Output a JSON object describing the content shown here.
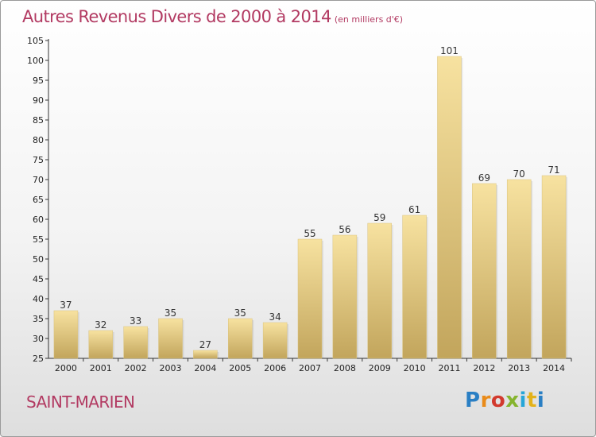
{
  "header": {
    "title": "Autres Revenus Divers de 2000 à 2014",
    "subtitle": "(en milliers d'€)"
  },
  "footer": {
    "place": "SAINT-MARIEN",
    "logo": [
      "P",
      "r",
      "o",
      "x",
      "i",
      "t",
      "i"
    ]
  },
  "colors": {
    "title": "#b23a62",
    "bar_light": "#f7e2a0",
    "bar_dark": "#c2a55c",
    "axis": "#333333"
  },
  "chart_data": {
    "type": "bar",
    "categories": [
      "2000",
      "2001",
      "2002",
      "2003",
      "2004",
      "2005",
      "2006",
      "2007",
      "2008",
      "2009",
      "2010",
      "2011",
      "2012",
      "2013",
      "2014"
    ],
    "values": [
      37,
      32,
      33,
      35,
      27,
      35,
      34,
      55,
      56,
      59,
      61,
      101,
      69,
      70,
      71
    ],
    "title": "Autres Revenus Divers de 2000 à 2014",
    "subtitle": "(en milliers d'€)",
    "xlabel": "",
    "ylabel": "",
    "ylim": [
      25,
      105
    ],
    "yticks": [
      25,
      30,
      35,
      40,
      45,
      50,
      55,
      60,
      65,
      70,
      75,
      80,
      85,
      90,
      95,
      100,
      105
    ],
    "grid": false,
    "data_labels": true
  }
}
